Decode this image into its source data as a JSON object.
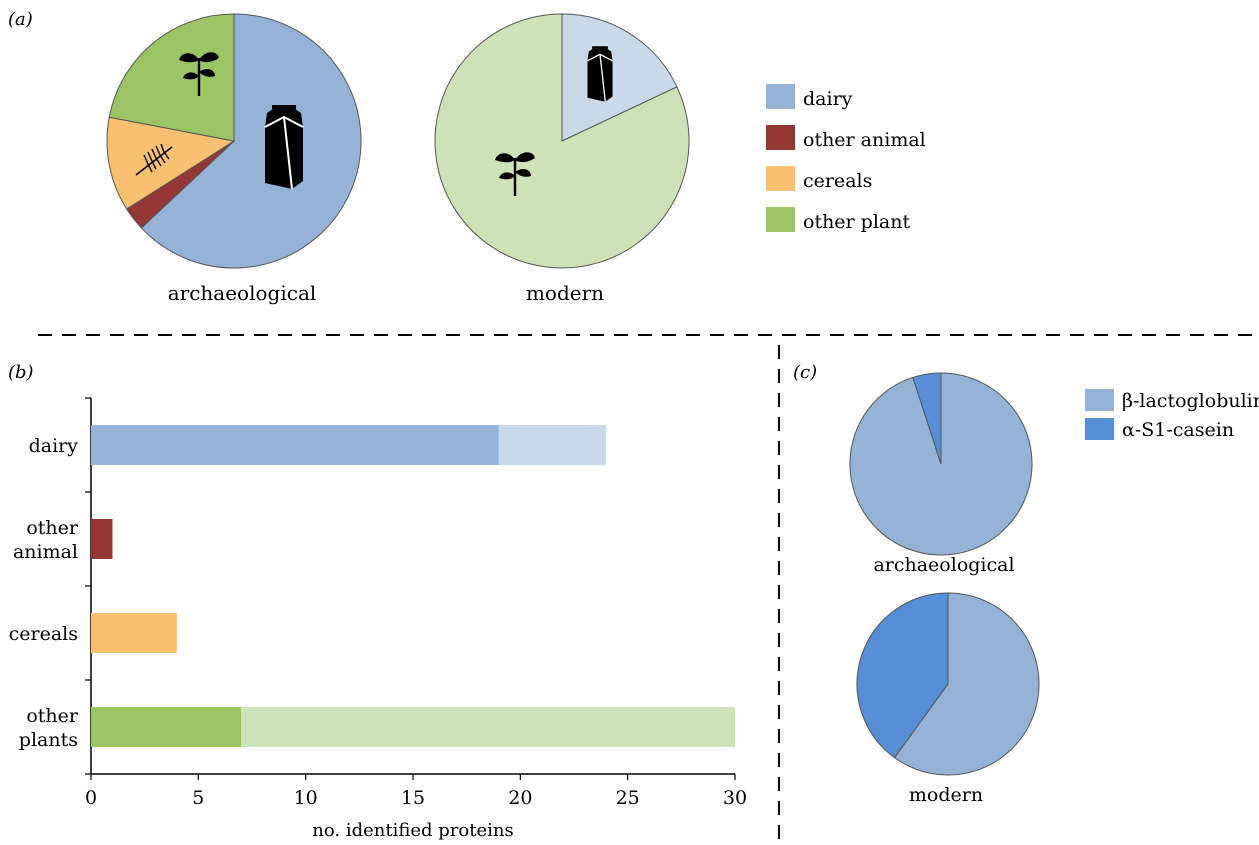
{
  "panels": {
    "a": "(a)",
    "b": "(b)",
    "c": "(c)"
  },
  "colors": {
    "dairy": "#95b3d7",
    "dairy_light": "#c9d9ea",
    "other_animal": "#953735",
    "cereals": "#f8c070",
    "other_plant": "#9bc465",
    "other_plant_light": "#cde2b6",
    "beta_lactoglobulin": "#95b3d7",
    "alpha_s1_casein": "#558ed5"
  },
  "legend_a": [
    {
      "label": "dairy",
      "color_key": "dairy"
    },
    {
      "label": "other animal",
      "color_key": "other_animal"
    },
    {
      "label": "cereals",
      "color_key": "cereals"
    },
    {
      "label": "other plant",
      "color_key": "other_plant"
    }
  ],
  "legend_c": [
    {
      "label": "β-lactoglobulin",
      "color_key": "beta_lactoglobulin"
    },
    {
      "label": "α-S1-casein",
      "color_key": "alpha_s1_casein"
    }
  ],
  "icons": [
    "milk-carton-icon",
    "plant-sprout-icon",
    "wheat-ear-icon"
  ],
  "chart_data": [
    {
      "id": "a-archaeological",
      "type": "pie",
      "title": "archaeological",
      "slices": [
        {
          "name": "dairy",
          "value": 63.0,
          "color_key": "dairy",
          "icon": "milk-carton-icon"
        },
        {
          "name": "other animal",
          "value": 3.0,
          "color_key": "other_animal"
        },
        {
          "name": "cereals",
          "value": 12.0,
          "color_key": "cereals",
          "icon": "wheat-ear-icon"
        },
        {
          "name": "other plant",
          "value": 22.0,
          "color_key": "other_plant",
          "icon": "plant-sprout-icon"
        }
      ]
    },
    {
      "id": "a-modern",
      "type": "pie",
      "title": "modern",
      "slices": [
        {
          "name": "dairy",
          "value": 18.0,
          "color_key": "dairy_light",
          "icon": "milk-carton-icon"
        },
        {
          "name": "other plant",
          "value": 82.0,
          "color_key": "other_plant_light",
          "icon": "plant-sprout-icon"
        }
      ]
    },
    {
      "id": "b",
      "type": "bar",
      "orientation": "horizontal",
      "stacked": true,
      "categories": [
        "dairy",
        "other animal",
        "cereals",
        "other plants"
      ],
      "category_labels": [
        [
          "dairy"
        ],
        [
          "other",
          "animal"
        ],
        [
          "cereals"
        ],
        [
          "other",
          "plants"
        ]
      ],
      "series": [
        {
          "values": [
            19,
            1,
            4,
            7
          ],
          "color_keys": [
            "dairy",
            "other_animal",
            "cereals",
            "other_plant"
          ]
        },
        {
          "values": [
            5,
            0,
            0,
            23
          ],
          "color_keys": [
            "dairy_light",
            "other_animal",
            "cereals",
            "other_plant_light"
          ]
        }
      ],
      "xlabel": "no. identified proteins",
      "xlim": [
        0,
        30
      ],
      "xticks": [
        0,
        5,
        10,
        15,
        20,
        25,
        30
      ]
    },
    {
      "id": "c-archaeological",
      "type": "pie",
      "title": "archaeological",
      "slices": [
        {
          "name": "β-lactoglobulin",
          "value": 95.0,
          "color_key": "beta_lactoglobulin"
        },
        {
          "name": "α-S1-casein",
          "value": 5.0,
          "color_key": "alpha_s1_casein"
        }
      ]
    },
    {
      "id": "c-modern",
      "type": "pie",
      "title": "modern",
      "slices": [
        {
          "name": "β-lactoglobulin",
          "value": 60.0,
          "color_key": "beta_lactoglobulin"
        },
        {
          "name": "α-S1-casein",
          "value": 40.0,
          "color_key": "alpha_s1_casein"
        }
      ]
    }
  ]
}
